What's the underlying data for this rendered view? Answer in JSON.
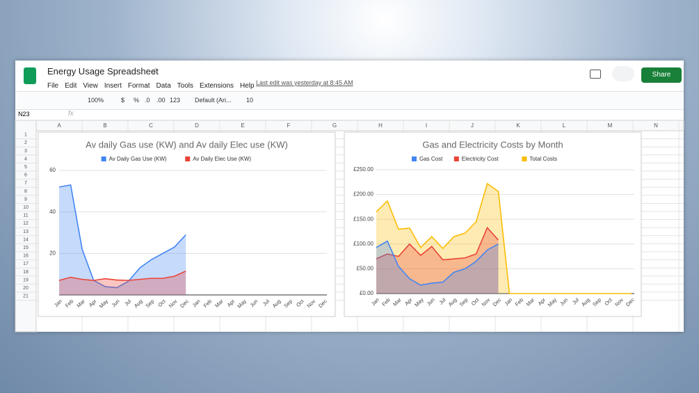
{
  "header": {
    "title": "Energy Usage Spreadsheet",
    "menu": [
      "File",
      "Edit",
      "View",
      "Insert",
      "Format",
      "Data",
      "Tools",
      "Extensions",
      "Help"
    ],
    "last_edit": "Last edit was yesterday at 8:45 AM",
    "share": "Share"
  },
  "toolbar": {
    "zoom": "100%",
    "currency": "$",
    "percent": "%",
    "dec_less": ".0",
    "dec_more": ".00",
    "format": "123",
    "font": "Default (Ari...",
    "size": "10"
  },
  "formula_bar": {
    "cell": "N23",
    "fx": "fx"
  },
  "sheet": {
    "columns": [
      "A",
      "B",
      "C",
      "D",
      "E",
      "F",
      "G",
      "H",
      "I",
      "J",
      "K",
      "L",
      "M",
      "N"
    ],
    "rows": [
      "1",
      "2",
      "3",
      "4",
      "5",
      "6",
      "7",
      "8",
      "9",
      "10",
      "11",
      "12",
      "13",
      "14",
      "15",
      "16",
      "17",
      "18",
      "19",
      "20",
      "21"
    ]
  },
  "chart_data": [
    {
      "type": "area",
      "title": "Av daily Gas use (KW) and Av daily Elec use (KW)",
      "categories": [
        "Jan",
        "Feb",
        "Mar",
        "Apr",
        "May",
        "Jun",
        "Jul",
        "Aug",
        "Sep",
        "Oct",
        "Nov",
        "Dec",
        "Jan",
        "Feb",
        "Mar",
        "Apr",
        "May",
        "Jun",
        "Jul",
        "Aug",
        "Sep",
        "Oct",
        "Nov",
        "Dec"
      ],
      "series": [
        {
          "name": "Av Daily Gas Use (KW)",
          "color": "#4285f4",
          "values": [
            52,
            53,
            22,
            7,
            4,
            3.5,
            6.5,
            13,
            17,
            20,
            23,
            29,
            null,
            null,
            null,
            null,
            null,
            null,
            null,
            null,
            null,
            null,
            null,
            null
          ]
        },
        {
          "name": "Av Daily Elec Use (KW)",
          "color": "#ea4335",
          "values": [
            7,
            8.5,
            7.5,
            7,
            7.8,
            7.2,
            7,
            7.5,
            8,
            8,
            9,
            11.5,
            null,
            null,
            null,
            null,
            null,
            null,
            null,
            null,
            null,
            null,
            null,
            null
          ]
        }
      ],
      "ylim": [
        0,
        60
      ],
      "yticks": [
        20,
        40,
        60
      ],
      "grid": true,
      "legend": "top"
    },
    {
      "type": "area",
      "title": "Gas and Electricity Costs by Month",
      "categories": [
        "Jan",
        "Feb",
        "Mar",
        "Apr",
        "May",
        "Jun",
        "Jul",
        "Aug",
        "Sep",
        "Oct",
        "Nov",
        "Dec",
        "Jan",
        "Feb",
        "Mar",
        "Apr",
        "May",
        "Jun",
        "Jul",
        "Aug",
        "Sep",
        "Oct",
        "Nov",
        "Dec"
      ],
      "series": [
        {
          "name": "Gas Cost",
          "color": "#4285f4",
          "values": [
            93,
            106,
            55,
            30,
            17,
            21,
            23,
            43,
            50,
            65,
            88,
            100,
            null,
            null,
            null,
            null,
            null,
            null,
            null,
            null,
            null,
            null,
            null,
            null
          ]
        },
        {
          "name": "Electricity Cost",
          "color": "#ea4335",
          "values": [
            70,
            80,
            75,
            100,
            77,
            95,
            68,
            70,
            72,
            80,
            133,
            108,
            null,
            null,
            null,
            null,
            null,
            null,
            null,
            null,
            null,
            null,
            null,
            null
          ]
        },
        {
          "name": "Total Costs",
          "color": "#fbbc04",
          "values": [
            165,
            187,
            130,
            132,
            93,
            115,
            91,
            115,
            122,
            145,
            222,
            206,
            0,
            0,
            0,
            0,
            0,
            0,
            0,
            0,
            0,
            0,
            0,
            0
          ]
        }
      ],
      "ylim": [
        0,
        250
      ],
      "yticks": [
        {
          "value": 0,
          "label": "£0.00"
        },
        {
          "value": 50,
          "label": "£50.00"
        },
        {
          "value": 100,
          "label": "£100.00"
        },
        {
          "value": 150,
          "label": "£150.00"
        },
        {
          "value": 200,
          "label": "£200.00"
        },
        {
          "value": 250,
          "label": "£250.00"
        }
      ],
      "grid": true,
      "legend": "top"
    }
  ]
}
